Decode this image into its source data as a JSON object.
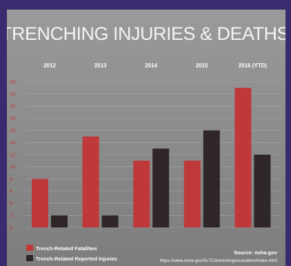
{
  "chart_data": {
    "type": "bar",
    "title": "TRENCHING INJURIES & DEATHS",
    "categories": [
      "2012",
      "2013",
      "2014",
      "2015",
      "2016 (YTD)"
    ],
    "series": [
      {
        "name": "Trench-Related Fatalities",
        "color": "#c0393a",
        "values": [
          8,
          15,
          11,
          11,
          23
        ]
      },
      {
        "name": "Trench-Related Reported Injuries",
        "color": "#2f2727",
        "values": [
          2,
          2,
          13,
          16,
          12
        ]
      }
    ],
    "yticks": [
      "0",
      "2",
      "4",
      "6",
      "8",
      "10",
      "12",
      "14",
      "16",
      "18",
      "20",
      "22",
      "24"
    ],
    "ylim": [
      0,
      24
    ],
    "grid": true,
    "legend": "bottom-left",
    "source_label": "Source: osha.gov",
    "source_url": "https://www.osha.gov/SLTC/trenchingexcavation/index.html"
  }
}
